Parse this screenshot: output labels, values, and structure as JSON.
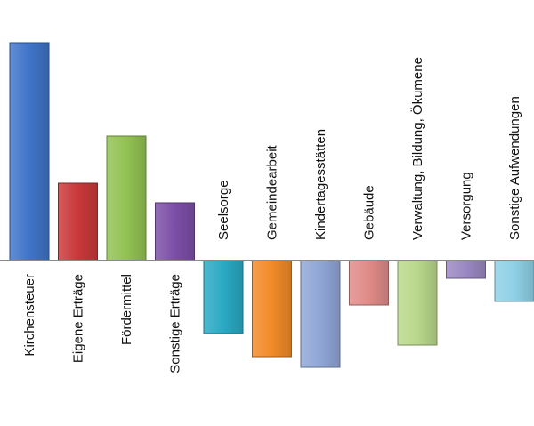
{
  "chart_data": {
    "type": "bar",
    "title": "",
    "xlabel": "",
    "ylabel": "",
    "ylim": [
      -120,
      245
    ],
    "grid": false,
    "legend": "none",
    "categories": [
      "Kirchensteuer",
      "Eigene Erträge",
      "Fördermittel",
      "Sonstige Erträge",
      "Seelsorge",
      "Gemeindearbeit",
      "Kindertagesstätten",
      "Gebäude",
      "Verwaltung, Bildung, Ökumene",
      "Versorgung",
      "Sonstige Aufwendungen"
    ],
    "values": [
      245,
      87,
      140,
      65,
      -82,
      -108,
      -120,
      -50,
      -95,
      -20,
      -46
    ],
    "colors": [
      "#3f74c8",
      "#c9383a",
      "#93c253",
      "#7c4ea7",
      "#2aa9c3",
      "#f28a28",
      "#8fa6d6",
      "#e08b88",
      "#b9d88b",
      "#9a88c2",
      "#8fd0e6"
    ]
  }
}
